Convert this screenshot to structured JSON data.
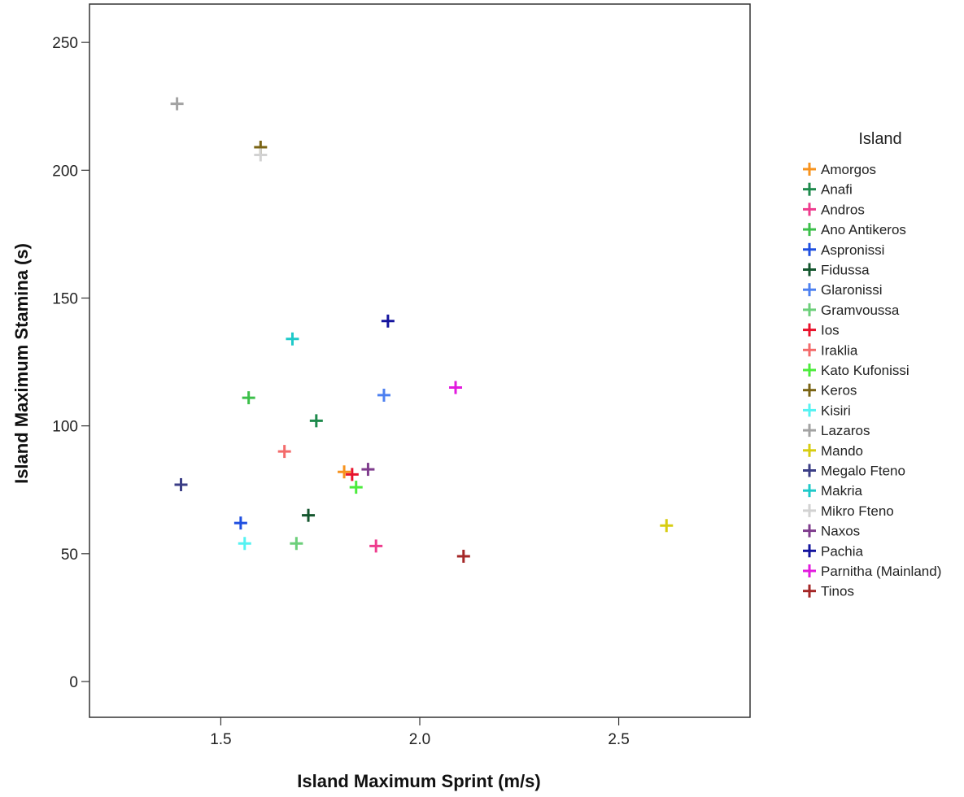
{
  "chart_data": {
    "type": "scatter",
    "title": "",
    "xlabel": "Island Maximum Sprint (m/s)",
    "ylabel": "Island Maximum Stamina (s)",
    "xlim": [
      1.17,
      2.83
    ],
    "ylim": [
      -14,
      265
    ],
    "xticks": [
      1.5,
      2.0,
      2.5
    ],
    "xtick_labels": [
      "1.5",
      "2.0",
      "2.5"
    ],
    "yticks": [
      0,
      50,
      100,
      150,
      200,
      250
    ],
    "ytick_labels": [
      "0",
      "50",
      "100",
      "150",
      "200",
      "250"
    ],
    "grid": false,
    "marker": "plus",
    "legend": {
      "title": "Island",
      "position": "right"
    },
    "series": [
      {
        "name": "Amorgos",
        "color": "#F7931E",
        "points": [
          [
            1.81,
            82
          ]
        ]
      },
      {
        "name": "Anafi",
        "color": "#1E8A4C",
        "points": [
          [
            1.74,
            102
          ]
        ]
      },
      {
        "name": "Andros",
        "color": "#EE3C8E",
        "points": [
          [
            1.89,
            53
          ]
        ]
      },
      {
        "name": "Ano Antikeros",
        "color": "#3CBF4A",
        "points": [
          [
            1.57,
            111
          ]
        ]
      },
      {
        "name": "Aspronissi",
        "color": "#1F4FE0",
        "points": [
          [
            1.55,
            62
          ]
        ]
      },
      {
        "name": "Fidussa",
        "color": "#14562E",
        "points": [
          [
            1.72,
            65
          ]
        ]
      },
      {
        "name": "Glaronissi",
        "color": "#4D80F0",
        "points": [
          [
            1.91,
            112
          ]
        ]
      },
      {
        "name": "Gramvoussa",
        "color": "#6CCF7A",
        "points": [
          [
            1.69,
            54
          ]
        ]
      },
      {
        "name": "Ios",
        "color": "#E8132C",
        "points": [
          [
            1.83,
            81
          ]
        ]
      },
      {
        "name": "Iraklia",
        "color": "#F36B6B",
        "points": [
          [
            1.66,
            90
          ]
        ]
      },
      {
        "name": "Kato Kufonissi",
        "color": "#4CEB3C",
        "points": [
          [
            1.84,
            76
          ]
        ]
      },
      {
        "name": "Keros",
        "color": "#7A6415",
        "points": [
          [
            1.6,
            209
          ]
        ]
      },
      {
        "name": "Kisiri",
        "color": "#55F2F2",
        "points": [
          [
            1.56,
            54
          ]
        ]
      },
      {
        "name": "Lazaros",
        "color": "#A3A3A3",
        "points": [
          [
            1.39,
            226
          ]
        ]
      },
      {
        "name": "Mando",
        "color": "#D7CD12",
        "points": [
          [
            2.62,
            61
          ]
        ]
      },
      {
        "name": "Megalo Fteno",
        "color": "#3B3E86",
        "points": [
          [
            1.4,
            77
          ]
        ]
      },
      {
        "name": "Makria",
        "color": "#1FC9C9",
        "points": [
          [
            1.68,
            134
          ]
        ]
      },
      {
        "name": "Mikro Fteno",
        "color": "#D2D2D2",
        "points": [
          [
            1.6,
            206
          ]
        ]
      },
      {
        "name": "Naxos",
        "color": "#7F3C8D",
        "points": [
          [
            1.87,
            83
          ]
        ]
      },
      {
        "name": "Pachia",
        "color": "#14149E",
        "points": [
          [
            1.92,
            141
          ]
        ]
      },
      {
        "name": "Parnitha (Mainland)",
        "color": "#E21BDE",
        "points": [
          [
            2.09,
            115
          ]
        ]
      },
      {
        "name": "Tinos",
        "color": "#A52727",
        "points": [
          [
            2.11,
            49
          ]
        ]
      }
    ]
  }
}
